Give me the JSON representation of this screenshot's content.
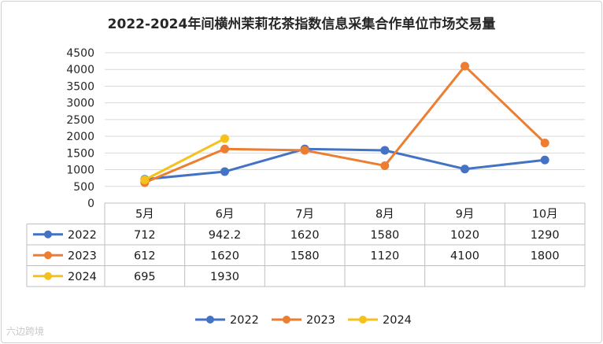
{
  "chart_data": {
    "type": "line",
    "title": "2022-2024年间横州茉莉花茶指数信息采集合作单位市场交易量",
    "categories": [
      "5月",
      "6月",
      "7月",
      "8月",
      "9月",
      "10月"
    ],
    "ylim": [
      0,
      4500
    ],
    "yticks": [
      0,
      500,
      1000,
      1500,
      2000,
      2500,
      3000,
      3500,
      4000,
      4500
    ],
    "grid": true,
    "legend": "bottom",
    "data_table": true,
    "series": [
      {
        "name": "2022",
        "color": "#4472C4",
        "values": [
          712,
          942.2,
          1620,
          1580,
          1020,
          1290
        ],
        "labels": [
          "712",
          "942.2",
          "1620",
          "1580",
          "1020",
          "1290"
        ]
      },
      {
        "name": "2023",
        "color": "#ED7D31",
        "values": [
          612,
          1620,
          1580,
          1120,
          4100,
          1800
        ],
        "labels": [
          "612",
          "1620",
          "1580",
          "1120",
          "4100",
          "1800"
        ]
      },
      {
        "name": "2024",
        "color": "#F5C21B",
        "values": [
          695,
          1930,
          null,
          null,
          null,
          null
        ],
        "labels": [
          "695",
          "1930",
          "",
          "",
          "",
          ""
        ]
      }
    ]
  },
  "watermark": "六边跨境"
}
